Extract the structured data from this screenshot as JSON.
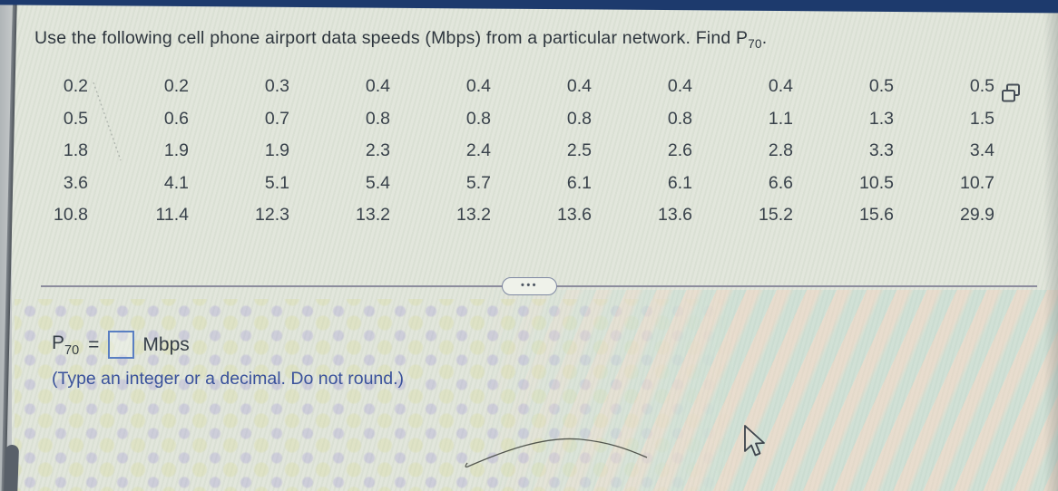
{
  "title": {
    "text": "Use the following cell phone airport data speeds (Mbps) from a particular network. Find P",
    "subscript": "70",
    "period": "."
  },
  "data_table": {
    "rows": [
      [
        "0.2",
        "0.2",
        "0.3",
        "0.4",
        "0.4",
        "0.4",
        "0.4",
        "0.4",
        "0.5",
        "0.5"
      ],
      [
        "0.5",
        "0.6",
        "0.7",
        "0.8",
        "0.8",
        "0.8",
        "0.8",
        "1.1",
        "1.3",
        "1.5"
      ],
      [
        "1.8",
        "1.9",
        "1.9",
        "2.3",
        "2.4",
        "2.5",
        "2.6",
        "2.8",
        "3.3",
        "3.4"
      ],
      [
        "3.6",
        "4.1",
        "5.1",
        "5.4",
        "5.7",
        "6.1",
        "6.1",
        "6.6",
        "10.5",
        "10.7"
      ],
      [
        "10.8",
        "11.4",
        "12.3",
        "13.2",
        "13.2",
        "13.6",
        "13.6",
        "15.2",
        "15.6",
        "29.9"
      ]
    ]
  },
  "divider": {
    "ellipsis": "•••"
  },
  "answer": {
    "symbol": "P",
    "symbol_subscript": "70",
    "equals_sign": "=",
    "input_value": "",
    "unit_label": "Mbps",
    "instruction": "(Type an integer or a decimal. Do not round.)"
  },
  "icons": {
    "copy": "overlapping-squares",
    "ellipsis": "three-dots",
    "cursor": "arrow-pointer"
  },
  "colors": {
    "top_bar": "#1d3a6d",
    "background": "#e0e4d9",
    "text_primary": "#39424b",
    "instruction_blue": "#3a529b",
    "input_border_blue": "#5a7fc2",
    "divider": "#8c8c9d"
  }
}
